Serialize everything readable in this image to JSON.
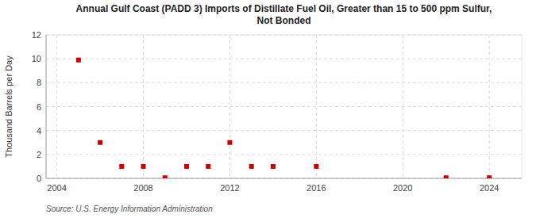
{
  "chart_data": {
    "type": "scatter",
    "title": "Annual Gulf Coast (PADD 3) Imports of Distillate Fuel Oil, Greater than 15 to 500 ppm Sulfur,\nNot Bonded",
    "ylabel": "Thousand Barrels per Day",
    "annotations": [
      "Source: U.S. Energy Information Administration"
    ],
    "x": [
      2005,
      2006,
      2007,
      2008,
      2009,
      2010,
      2011,
      2012,
      2013,
      2014,
      2016,
      2022,
      2024
    ],
    "values": [
      9.9,
      3.0,
      1.0,
      1.0,
      0.05,
      1.0,
      1.0,
      3.0,
      1.0,
      1.0,
      1.0,
      0.05,
      0.05
    ],
    "color": "#cc0000",
    "marker": "square",
    "xlim": [
      2003.5,
      2025.5
    ],
    "ylim": [
      0,
      12
    ],
    "xticks": [
      2004,
      2008,
      2012,
      2016,
      2020,
      2024
    ],
    "yticks": [
      0,
      2,
      4,
      6,
      8,
      10,
      12
    ],
    "grid": true
  }
}
